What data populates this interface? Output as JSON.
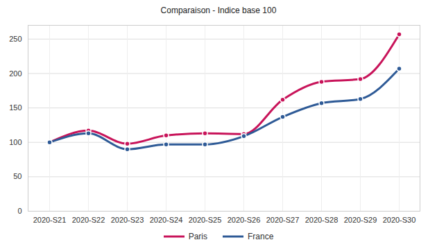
{
  "chart_data": {
    "type": "line",
    "title": "Comparaison - Indice base 100",
    "categories": [
      "2020-S21",
      "2020-S22",
      "2020-S23",
      "2020-S24",
      "2020-S25",
      "2020-S26",
      "2020-S27",
      "2020-S28",
      "2020-S29",
      "2020-S30"
    ],
    "series": [
      {
        "name": "Paris",
        "color": "#c8145a",
        "values": [
          100,
          117,
          98,
          110,
          113,
          112,
          162,
          188,
          192,
          257
        ]
      },
      {
        "name": "France",
        "color": "#2e5a96",
        "values": [
          100,
          113,
          90,
          97,
          97,
          109,
          137,
          157,
          163,
          207
        ]
      }
    ],
    "ylim": [
      0,
      270
    ],
    "yticks": [
      0,
      50,
      100,
      150,
      200,
      250
    ],
    "grid": true,
    "legend": "bottom",
    "marker": "circle",
    "line_style": "smooth"
  }
}
